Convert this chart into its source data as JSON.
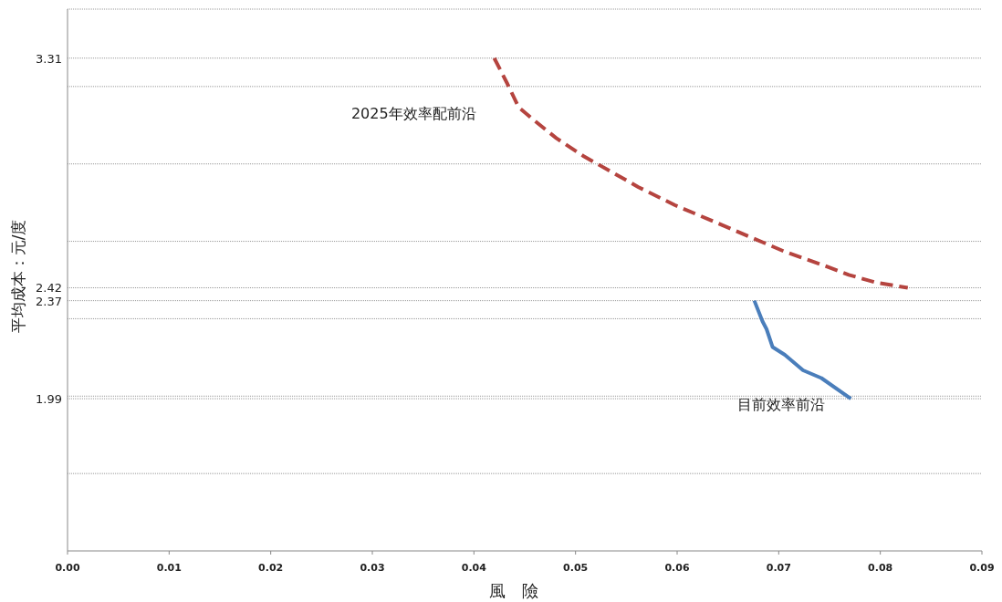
{
  "chart_data": {
    "type": "line",
    "xlabel": "風　險",
    "ylabel": "平均成本：元/度",
    "grid": "y",
    "xlim": [
      0,
      0.09
    ],
    "xticks": [
      {
        "value": 0,
        "label": "0.00"
      },
      {
        "value": 0.01,
        "label": "0.01"
      },
      {
        "value": 0.02,
        "label": "0.02"
      },
      {
        "value": 0.03,
        "label": "0.03"
      },
      {
        "value": 0.04,
        "label": "0.04"
      },
      {
        "value": 0.05,
        "label": "0.05"
      },
      {
        "value": 0.06,
        "label": "0.06"
      },
      {
        "value": 0.07,
        "label": "0.07"
      },
      {
        "value": 0.08,
        "label": "0.08"
      },
      {
        "value": 0.09,
        "label": "0.09"
      }
    ],
    "ylim": [
      1.4,
      3.5
    ],
    "yticks": [
      {
        "value": 1.7,
        "label": null
      },
      {
        "value": 2.0,
        "label": null
      },
      {
        "value": 2.3,
        "label": null
      },
      {
        "value": 2.6,
        "label": null
      },
      {
        "value": 2.9,
        "label": null
      },
      {
        "value": 3.2,
        "label": null
      },
      {
        "value": 3.5,
        "label": null
      },
      3.31,
      2.42,
      2.37,
      1.99
    ],
    "series": [
      {
        "name": "2025年效率配前沿",
        "color": "#b5443f",
        "line_style": "dashed",
        "x": [
          0.042,
          0.0433,
          0.0444,
          0.0459,
          0.0481,
          0.0508,
          0.0535,
          0.0562,
          0.0598,
          0.0634,
          0.067,
          0.0706,
          0.0742,
          0.0769,
          0.0796,
          0.0827
        ],
        "values": [
          3.31,
          3.21,
          3.12,
          3.07,
          3.0,
          2.93,
          2.87,
          2.81,
          2.74,
          2.68,
          2.62,
          2.56,
          2.51,
          2.47,
          2.44,
          2.42
        ]
      },
      {
        "name": "目前效率前沿",
        "color": "#4a7ebb",
        "line_style": "solid",
        "x": [
          0.0676,
          0.0684,
          0.0688,
          0.0694,
          0.0706,
          0.0724,
          0.0742,
          0.0771
        ],
        "values": [
          2.37,
          2.29,
          2.26,
          2.19,
          2.16,
          2.1,
          2.07,
          1.99
        ]
      }
    ]
  }
}
